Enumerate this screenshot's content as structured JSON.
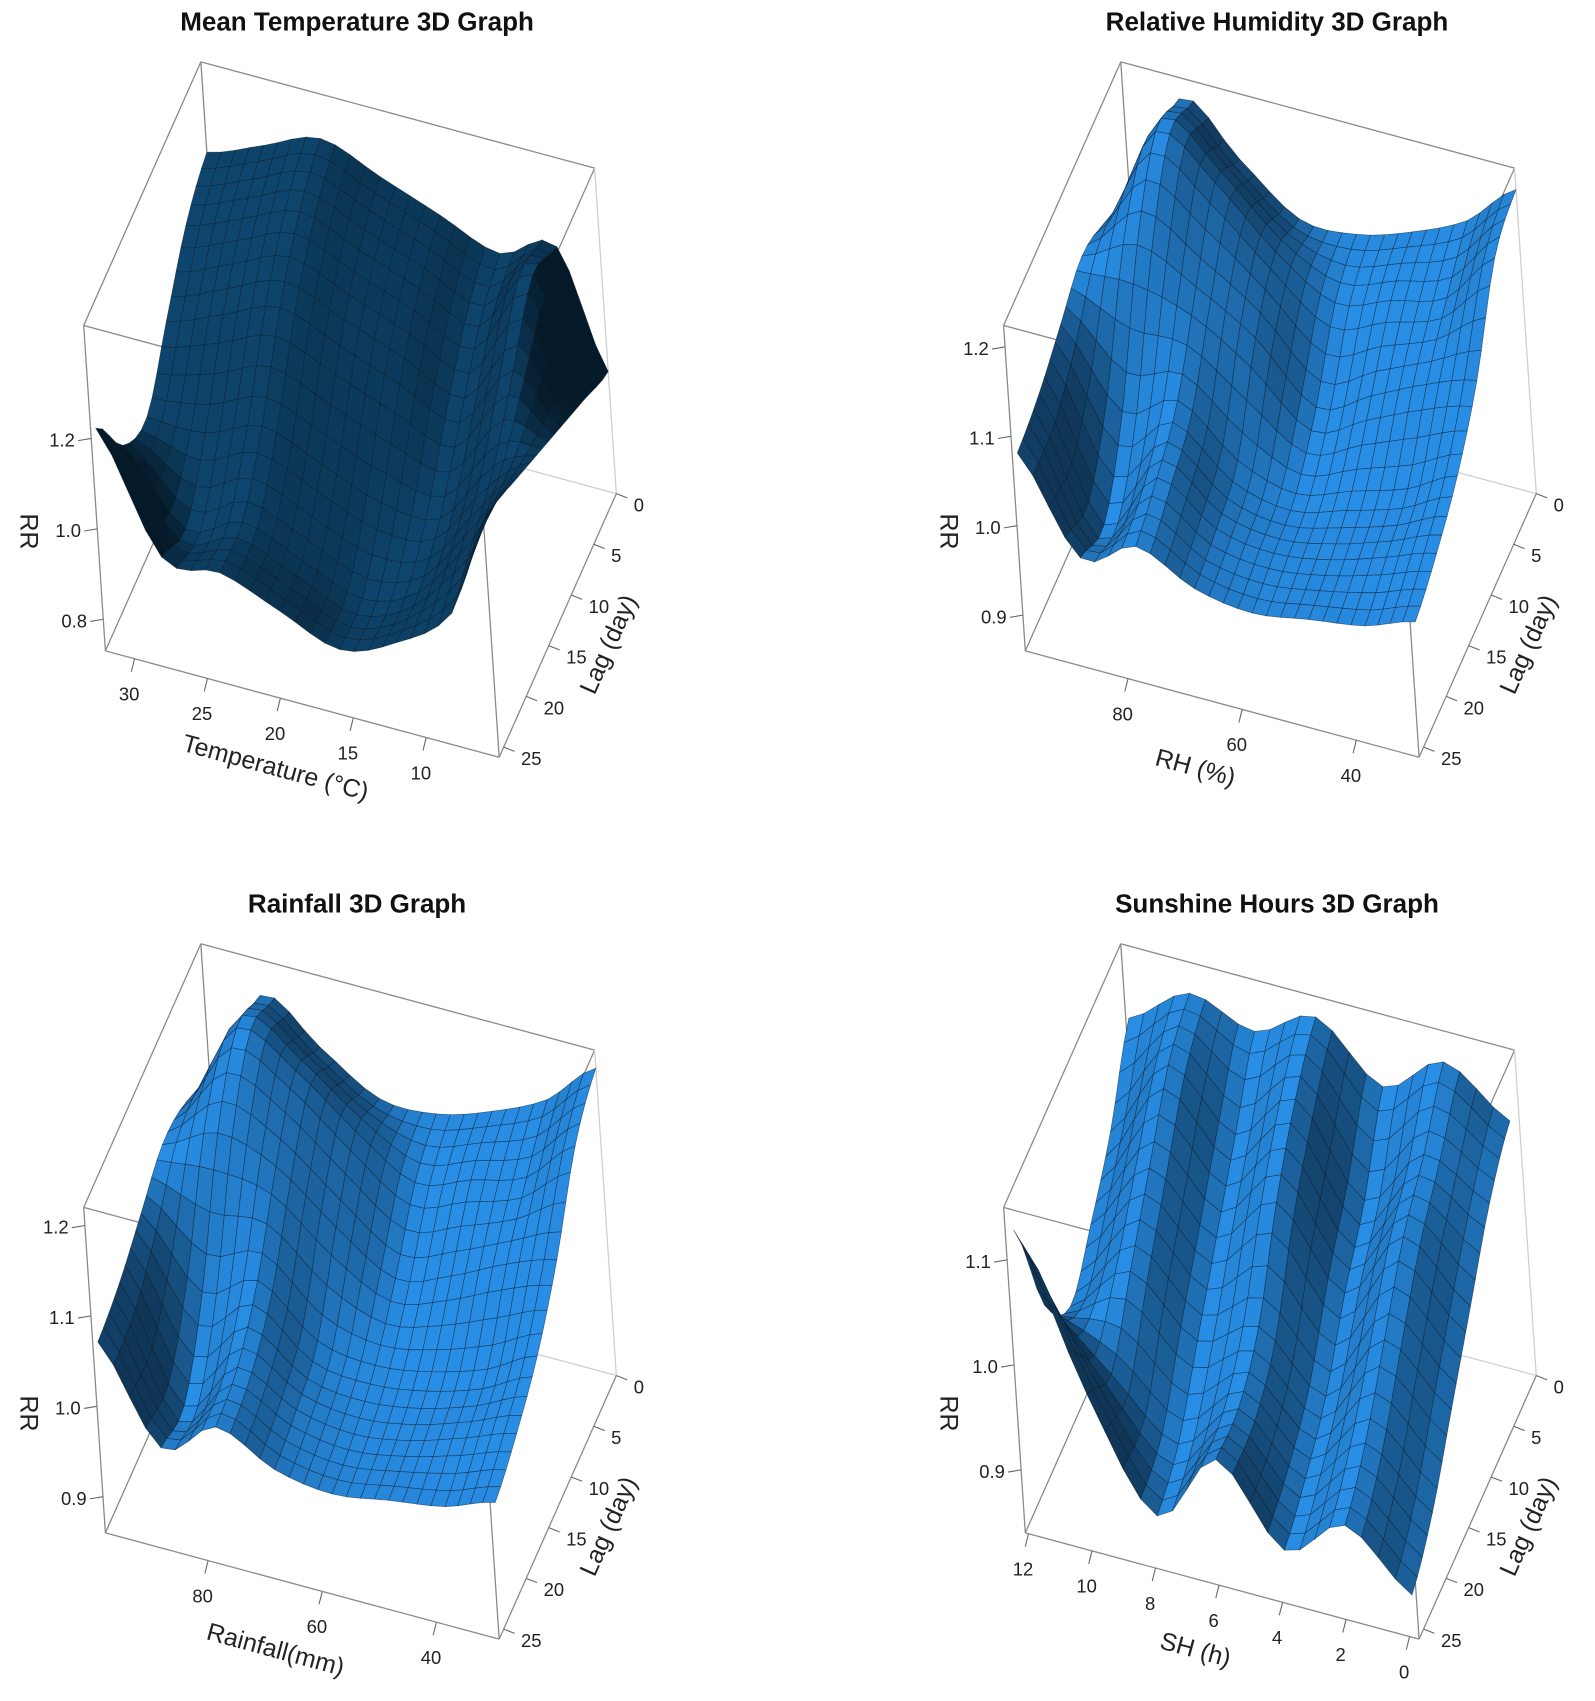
{
  "chart_data": [
    {
      "type": "surface3d",
      "title": "Mean Temperature 3D Graph",
      "xlabel": "Temperature (°C)",
      "ylabel": "Lag (day)",
      "zlabel": "RR",
      "color": "#0c3a5c",
      "xlim": [
        32,
        5
      ],
      "xticks": [
        30,
        25,
        20,
        15,
        10
      ],
      "ylim": [
        0,
        26
      ],
      "yticks": [
        0,
        5,
        10,
        15,
        20,
        25
      ],
      "zlim": [
        0.73,
        1.45
      ],
      "zticks": [
        0.8,
        {
          "value": 1.0,
          "label": "1.0"
        },
        1.2
      ],
      "surface": {
        "x": [
          32,
          28,
          24,
          20,
          16,
          12,
          8,
          5
        ],
        "lag": [
          0,
          5,
          10,
          15,
          20,
          25
        ],
        "z": [
          [
            1.25,
            1.3,
            1.35,
            1.3,
            1.25,
            1.2,
            1.25,
            1.0
          ],
          [
            1.2,
            1.25,
            1.3,
            1.25,
            1.2,
            1.15,
            1.3,
            1.05
          ],
          [
            1.1,
            1.15,
            1.2,
            1.15,
            1.1,
            1.05,
            1.2,
            1.1
          ],
          [
            1.0,
            1.0,
            1.05,
            1.0,
            0.95,
            0.95,
            1.1,
            1.15
          ],
          [
            1.05,
            0.9,
            0.95,
            0.9,
            0.85,
            0.9,
            1.05,
            1.2
          ],
          [
            1.2,
            0.95,
            0.95,
            0.9,
            0.85,
            0.9,
            1.0,
            1.25
          ]
        ]
      }
    },
    {
      "type": "surface3d",
      "title": "Relative Humidity 3D Graph",
      "xlabel": "RH (%)",
      "ylabel": "Lag (day)",
      "zlabel": "RR",
      "color": "#2277c0",
      "xlim": [
        98,
        29
      ],
      "xticks": [
        80,
        60,
        40
      ],
      "ylim": [
        0,
        26
      ],
      "yticks": [
        0,
        5,
        10,
        15,
        20,
        25
      ],
      "zlim": [
        0.86,
        1.224
      ],
      "zticks": [
        0.9,
        {
          "value": 1.0,
          "label": "1.0"
        },
        1.1,
        1.2
      ],
      "surface": {
        "x": [
          98,
          88,
          78,
          68,
          58,
          48,
          38,
          29
        ],
        "lag": [
          0,
          5,
          10,
          15,
          20,
          25
        ],
        "z": [
          [
            1.05,
            1.2,
            1.15,
            1.1,
            1.1,
            1.12,
            1.15,
            1.2
          ],
          [
            1.1,
            1.22,
            1.18,
            1.12,
            1.08,
            1.1,
            1.12,
            1.18
          ],
          [
            1.12,
            1.15,
            1.12,
            1.08,
            1.02,
            1.05,
            1.08,
            1.1
          ],
          [
            1.1,
            1.02,
            1.05,
            1.0,
            0.98,
            1.0,
            1.02,
            1.05
          ],
          [
            1.08,
            0.95,
            1.02,
            0.98,
            0.97,
            0.98,
            1.0,
            1.02
          ],
          [
            1.07,
            0.97,
            1.0,
            0.97,
            0.96,
            0.97,
            0.98,
            1.0
          ]
        ]
      }
    },
    {
      "type": "surface3d",
      "title": "Rainfall 3D Graph",
      "xlabel": "Rainfall(mm)",
      "ylabel": "Lag (day)",
      "zlabel": "RR",
      "color": "#2277c0",
      "xlim": [
        98,
        29
      ],
      "xticks": [
        80,
        60,
        40
      ],
      "ylim": [
        0,
        26
      ],
      "yticks": [
        0,
        5,
        10,
        15,
        20,
        25
      ],
      "zlim": [
        0.86,
        1.22
      ],
      "zticks": [
        0.9,
        {
          "value": 1.0,
          "label": "1.0"
        },
        1.1,
        1.2
      ],
      "surface": {
        "x": [
          98,
          88,
          78,
          68,
          58,
          48,
          38,
          29
        ],
        "lag": [
          0,
          5,
          10,
          15,
          20,
          25
        ],
        "z": [
          [
            1.06,
            1.18,
            1.14,
            1.1,
            1.1,
            1.12,
            1.15,
            1.2
          ],
          [
            1.1,
            1.2,
            1.17,
            1.12,
            1.08,
            1.1,
            1.12,
            1.17
          ],
          [
            1.11,
            1.14,
            1.12,
            1.07,
            1.03,
            1.05,
            1.08,
            1.1
          ],
          [
            1.09,
            1.02,
            1.05,
            1.0,
            0.99,
            1.0,
            1.02,
            1.05
          ],
          [
            1.07,
            0.95,
            1.01,
            0.98,
            0.97,
            0.98,
            1.0,
            1.02
          ],
          [
            1.06,
            0.96,
            1.0,
            0.97,
            0.96,
            0.97,
            0.98,
            1.0
          ]
        ]
      }
    },
    {
      "type": "surface3d",
      "title": "Sunshine Hours 3D Graph",
      "xlabel": "SH (h)",
      "ylabel": "Lag (day)",
      "zlabel": "RR",
      "color": "#2277c0",
      "xlim": [
        12.1,
        -0.3
      ],
      "xticks": [
        12,
        10,
        8,
        6,
        4,
        2,
        0
      ],
      "ylim": [
        0,
        26
      ],
      "yticks": [
        0,
        5,
        10,
        15,
        20,
        25
      ],
      "zlim": [
        0.84,
        1.15
      ],
      "zticks": [
        0.9,
        {
          "value": 1.0,
          "label": "1.0"
        },
        1.1
      ],
      "surface": {
        "x": [
          12,
          10,
          8,
          6,
          4,
          2,
          0
        ],
        "lag": [
          0,
          5,
          10,
          15,
          20,
          25
        ],
        "z": [
          [
            1.08,
            1.12,
            1.1,
            1.13,
            1.08,
            1.12,
            1.08
          ],
          [
            1.02,
            1.1,
            1.05,
            1.1,
            1.02,
            1.08,
            1.05
          ],
          [
            0.98,
            1.05,
            1.0,
            1.05,
            0.98,
            1.05,
            1.0
          ],
          [
            0.95,
            1.0,
            0.95,
            0.98,
            0.93,
            1.0,
            0.95
          ],
          [
            1.0,
            0.95,
            0.9,
            0.95,
            0.9,
            0.95,
            0.9
          ],
          [
            1.12,
            0.98,
            0.88,
            0.95,
            0.88,
            0.92,
            0.87
          ]
        ]
      }
    }
  ]
}
